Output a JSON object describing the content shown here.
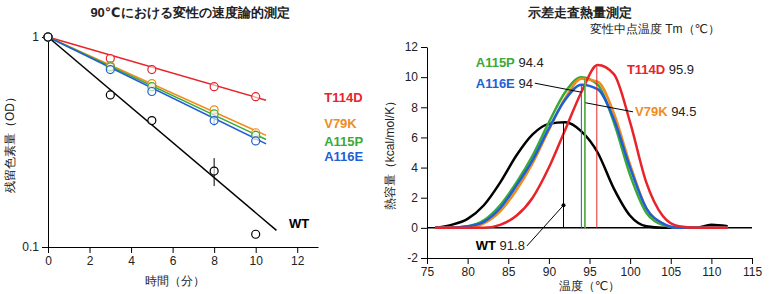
{
  "chart_data": [
    {
      "type": "line",
      "title": "90℃における変性の速度論的測定",
      "x_label": "時間（分）",
      "y_label": "残留色素量（OD）",
      "log": "y",
      "xlim": [
        0,
        13
      ],
      "xticks": [
        0,
        2,
        4,
        6,
        8,
        10,
        12
      ],
      "ylim": [
        0.1,
        1
      ],
      "yticks": [
        0.1,
        1
      ],
      "series": [
        {
          "name": "T114D",
          "color": "#e8232a",
          "type": "scatter",
          "marker": "open-circle",
          "x": [
            0,
            3,
            5,
            8,
            10
          ],
          "values": [
            1,
            0.79,
            0.7,
            0.58,
            0.52
          ]
        },
        {
          "name": "V79K",
          "color": "#f08c1e",
          "type": "scatter",
          "marker": "open-circle",
          "x": [
            0,
            3,
            5,
            8,
            10
          ],
          "values": [
            1,
            0.73,
            0.6,
            0.45,
            0.35
          ]
        },
        {
          "name": "A115P",
          "color": "#3aa935",
          "type": "scatter",
          "marker": "open-circle",
          "x": [
            0,
            3,
            5,
            8,
            10
          ],
          "values": [
            1,
            0.72,
            0.58,
            0.43,
            0.34
          ]
        },
        {
          "name": "A116E",
          "color": "#1f5fd6",
          "type": "scatter",
          "marker": "open-circle",
          "x": [
            0,
            3,
            5,
            8,
            10
          ],
          "values": [
            1,
            0.7,
            0.55,
            0.4,
            0.32
          ],
          "errors": [
            0,
            0,
            0,
            0.02,
            0
          ]
        },
        {
          "name": "WT",
          "color": "#000000",
          "type": "scatter",
          "marker": "open-circle",
          "x": [
            0,
            3,
            5,
            8,
            10
          ],
          "values": [
            1,
            0.53,
            0.4,
            0.23,
            0.115
          ],
          "errors": [
            0,
            0,
            0,
            0.035,
            0
          ]
        },
        {
          "color": "#e8232a",
          "type": "line",
          "line_style": "solid",
          "x": [
            0,
            10.5
          ],
          "values": [
            1,
            0.5
          ]
        },
        {
          "color": "#f08c1e",
          "type": "line",
          "line_style": "solid",
          "x": [
            0,
            10.5
          ],
          "values": [
            1,
            0.34
          ]
        },
        {
          "color": "#3aa935",
          "type": "line",
          "line_style": "solid",
          "x": [
            0,
            10.5
          ],
          "values": [
            1,
            0.325
          ]
        },
        {
          "color": "#1f5fd6",
          "type": "line",
          "line_style": "solid",
          "x": [
            0,
            10.5
          ],
          "values": [
            1,
            0.31
          ]
        },
        {
          "color": "#000000",
          "type": "line",
          "line_style": "solid",
          "x": [
            0,
            11
          ],
          "values": [
            1,
            0.12
          ]
        }
      ]
    },
    {
      "type": "line",
      "title": "示差走査熱量測定",
      "annotation": "変性中点温度 Tm（℃）",
      "x_label": "温度（℃）",
      "y_label": "熱容量（kcal/mol/K）",
      "xlim": [
        75,
        115
      ],
      "xticks": [
        75,
        80,
        85,
        90,
        95,
        100,
        105,
        110,
        115
      ],
      "ylim": [
        -2,
        12
      ],
      "yticks": [
        -2,
        0,
        2,
        4,
        6,
        8,
        10,
        12
      ],
      "x": [
        76,
        78,
        80,
        82,
        84,
        86,
        88,
        90,
        92,
        94,
        96,
        98,
        100,
        102,
        104,
        106,
        108,
        110,
        112
      ],
      "series": [
        {
          "name": "WT",
          "color": "#000000",
          "tm": 91.8,
          "values": [
            0,
            0.2,
            0.6,
            1.5,
            3.0,
            4.8,
            6.2,
            6.9,
            7.0,
            6.4,
            5.0,
            2.6,
            0.8,
            0.1,
            0,
            0,
            0,
            0.2,
            0.1
          ]
        },
        {
          "name": "A115P",
          "color": "#3aa935",
          "tm": 94.4,
          "values": [
            0,
            0,
            0.1,
            0.5,
            1.5,
            3.0,
            4.8,
            7.0,
            9.0,
            10.0,
            9.5,
            7.0,
            3.5,
            1.0,
            0.2,
            0,
            0,
            0,
            0
          ]
        },
        {
          "name": "V79K",
          "color": "#f08c1e",
          "tm": 94.5,
          "values": [
            0,
            0,
            0,
            0.3,
            1.1,
            2.5,
            4.3,
            6.5,
            8.6,
            9.9,
            9.7,
            7.6,
            4.2,
            1.3,
            0.3,
            0,
            0,
            0,
            0
          ]
        },
        {
          "name": "A116E",
          "color": "#1f5fd6",
          "tm": 94.0,
          "values": [
            0,
            0,
            0.1,
            0.4,
            1.3,
            2.8,
            4.5,
            6.6,
            8.5,
            9.5,
            9.2,
            7.2,
            4.0,
            1.3,
            0.3,
            0,
            0,
            0,
            0
          ]
        },
        {
          "name": "T114D",
          "color": "#e8232a",
          "tm": 95.9,
          "values": [
            0,
            0,
            0,
            0,
            0.2,
            0.8,
            2.0,
            4.0,
            6.5,
            9.0,
            10.8,
            10.2,
            7.0,
            3.0,
            0.8,
            0.1,
            0,
            0,
            0
          ]
        }
      ]
    }
  ]
}
